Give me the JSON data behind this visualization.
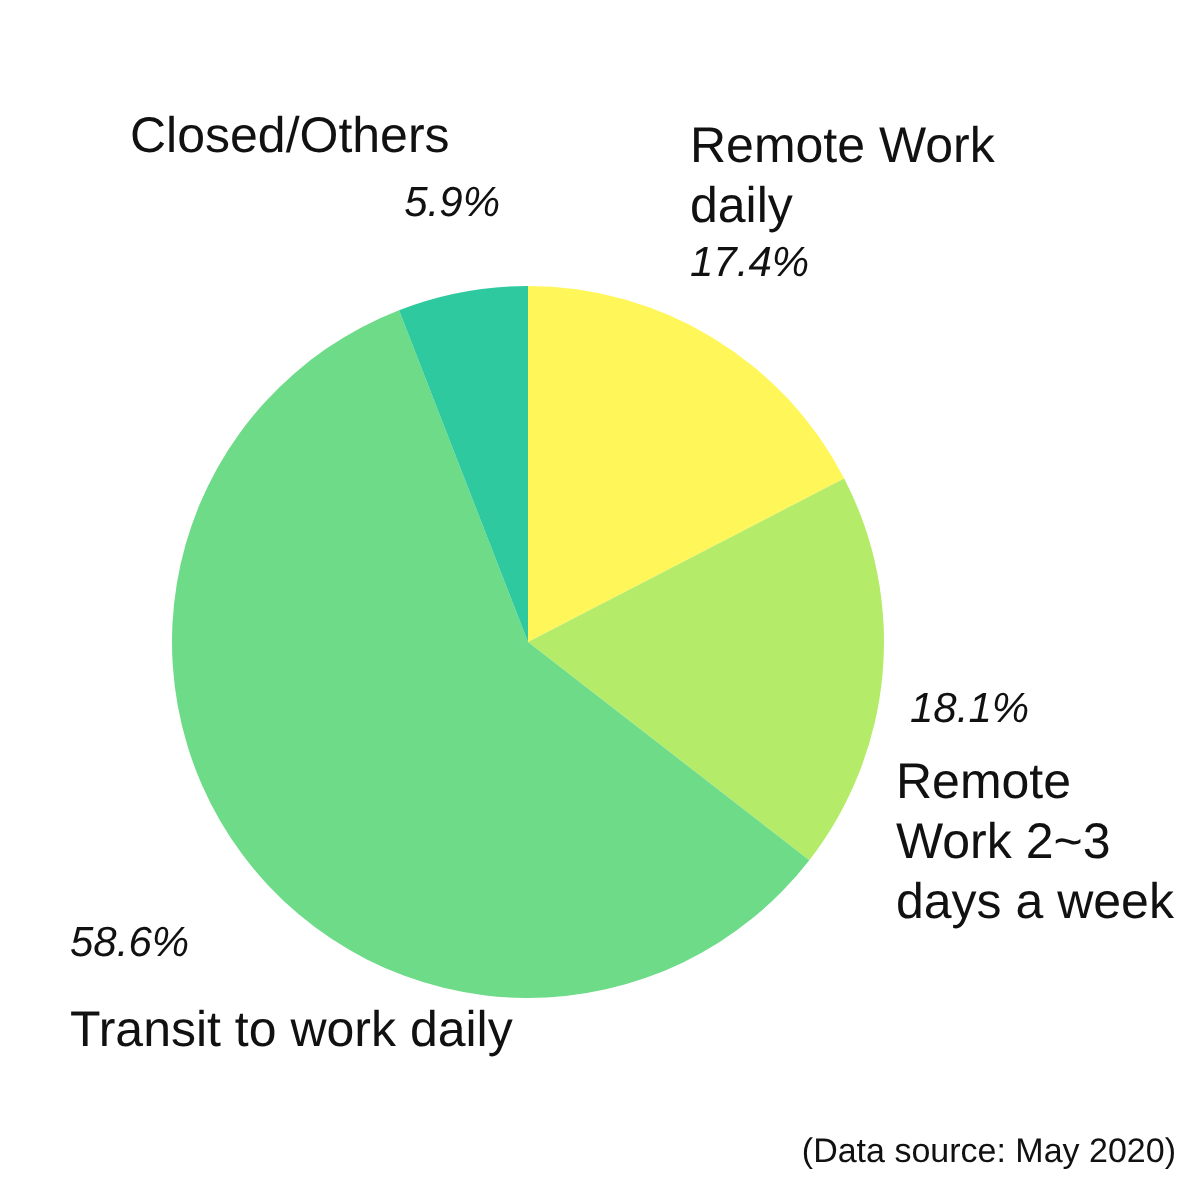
{
  "chart_data": {
    "type": "pie",
    "categories": [
      "Remote Work daily",
      "Remote Work 2~3 days a week",
      "Transit to work daily",
      "Closed/Others"
    ],
    "values": [
      17.4,
      18.1,
      58.6,
      5.9
    ],
    "value_labels": [
      "17.4%",
      "18.1%",
      "58.6%",
      "5.9%"
    ],
    "colors": [
      "#fff65a",
      "#b4ec6a",
      "#6ddb88",
      "#2ec99e"
    ],
    "annotations": [
      "(Data source: May 2020)"
    ]
  }
}
